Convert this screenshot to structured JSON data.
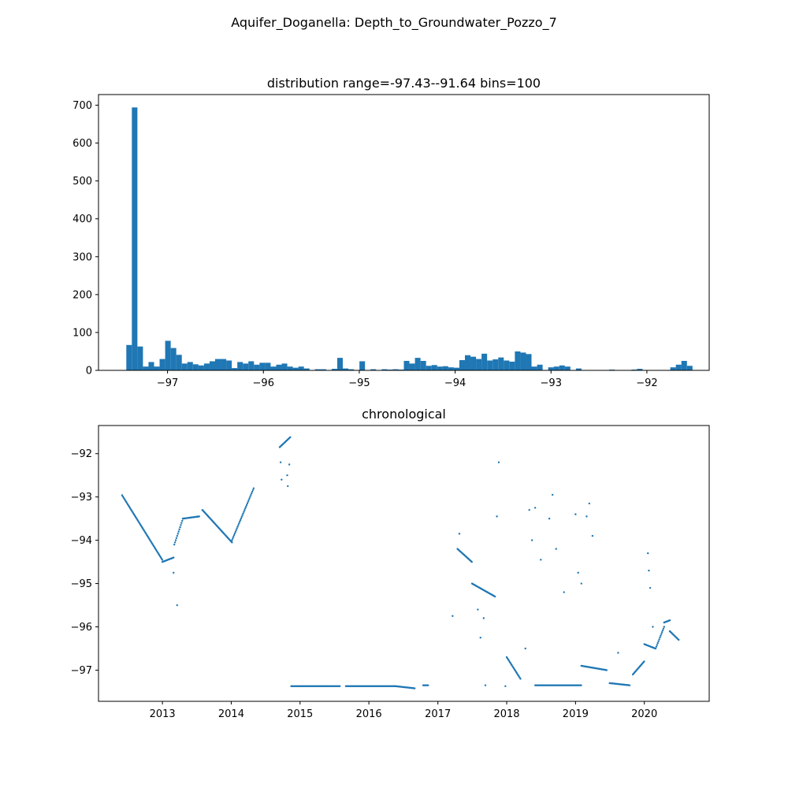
{
  "figure": {
    "title": "Aquifer_Doganella: Depth_to_Groundwater_Pozzo_7"
  },
  "colors": {
    "series": "#1f77b4",
    "axis": "#000000"
  },
  "chart_data": [
    {
      "type": "bar",
      "title": "distribution range=-97.43--91.64 bins=100",
      "xlabel": "",
      "ylabel": "",
      "bin_range": [
        -97.43,
        -91.64
      ],
      "bins": 100,
      "xlim": [
        -97.72,
        -91.35
      ],
      "ylim": [
        0,
        728
      ],
      "xticks": [
        -97,
        -96,
        -95,
        -94,
        -93,
        -92
      ],
      "yticks": [
        0,
        100,
        200,
        300,
        400,
        500,
        600,
        700
      ],
      "grid": false,
      "counts": [
        67,
        694,
        63,
        10,
        22,
        10,
        30,
        78,
        59,
        41,
        18,
        22,
        16,
        13,
        18,
        24,
        30,
        30,
        26,
        6,
        22,
        18,
        24,
        15,
        20,
        20,
        10,
        15,
        18,
        10,
        7,
        10,
        5,
        0,
        3,
        3,
        0,
        4,
        33,
        5,
        3,
        0,
        24,
        0,
        3,
        1,
        3,
        2,
        3,
        2,
        25,
        18,
        33,
        25,
        12,
        14,
        10,
        11,
        8,
        7,
        27,
        40,
        36,
        30,
        44,
        26,
        29,
        34,
        26,
        23,
        50,
        47,
        43,
        10,
        15,
        1,
        8,
        10,
        13,
        10,
        0,
        5,
        0,
        0,
        0,
        0,
        0,
        2,
        0,
        0,
        0,
        2,
        4,
        0,
        0,
        0,
        0,
        0,
        8,
        15,
        25,
        12
      ]
    },
    {
      "type": "scatter",
      "title": "chronological",
      "xlabel": "",
      "ylabel": "",
      "xlim": [
        "2012-01-28",
        "2020-12-10"
      ],
      "ylim": [
        -97.72,
        -91.35
      ],
      "xticks": [
        "2013",
        "2014",
        "2015",
        "2016",
        "2017",
        "2018",
        "2019",
        "2020"
      ],
      "yticks": [
        -92,
        -93,
        -94,
        -95,
        -96,
        -97
      ],
      "grid": false,
      "segments": [
        {
          "start": "2012-06-01",
          "end": "2012-12-31",
          "y0": -92.96,
          "y1": -94.45
        },
        {
          "start": "2013-01-01",
          "end": "2013-03-01",
          "y0": -94.5,
          "y1": -94.4
        },
        {
          "start": "2013-03-05",
          "end": "2013-04-20",
          "y0": -94.1,
          "y1": -93.5
        },
        {
          "start": "2013-04-20",
          "end": "2013-07-15",
          "y0": -93.5,
          "y1": -93.45
        },
        {
          "start": "2013-08-01",
          "end": "2014-01-05",
          "y0": -93.3,
          "y1": -94.05
        },
        {
          "start": "2014-01-05",
          "end": "2014-04-30",
          "y0": -94.0,
          "y1": -92.8
        },
        {
          "start": "2014-09-15",
          "end": "2014-11-10",
          "y0": -91.85,
          "y1": -91.62
        },
        {
          "start": "2014-11-15",
          "end": "2015-07-31",
          "y0": -97.37,
          "y1": -97.37
        },
        {
          "start": "2015-09-01",
          "end": "2016-05-20",
          "y0": -97.37,
          "y1": -97.37
        },
        {
          "start": "2016-05-20",
          "end": "2016-08-31",
          "y0": -97.37,
          "y1": -97.42
        },
        {
          "start": "2016-10-15",
          "end": "2016-11-10",
          "y0": -97.35,
          "y1": -97.35
        },
        {
          "start": "2017-04-15",
          "end": "2017-06-30",
          "y0": -94.2,
          "y1": -94.5
        },
        {
          "start": "2017-07-01",
          "end": "2017-10-31",
          "y0": -95.0,
          "y1": -95.3
        },
        {
          "start": "2018-01-01",
          "end": "2018-03-15",
          "y0": -96.7,
          "y1": -97.2
        },
        {
          "start": "2018-06-01",
          "end": "2019-01-31",
          "y0": -97.35,
          "y1": -97.35
        },
        {
          "start": "2019-02-01",
          "end": "2019-06-15",
          "y0": -96.9,
          "y1": -97.0
        },
        {
          "start": "2019-07-01",
          "end": "2019-10-15",
          "y0": -97.3,
          "y1": -97.35
        },
        {
          "start": "2019-11-01",
          "end": "2019-12-31",
          "y0": -97.1,
          "y1": -96.8
        },
        {
          "start": "2020-01-01",
          "end": "2020-02-28",
          "y0": -96.4,
          "y1": -96.5
        },
        {
          "start": "2020-03-01",
          "end": "2020-04-15",
          "y0": -96.5,
          "y1": -96.0
        },
        {
          "start": "2020-04-15",
          "end": "2020-05-15",
          "y0": -95.9,
          "y1": -95.85
        },
        {
          "start": "2020-05-15",
          "end": "2020-07-01",
          "y0": -96.1,
          "y1": -96.3
        }
      ],
      "points": [
        {
          "x": "2013-03-01",
          "y": -94.75
        },
        {
          "x": "2013-03-20",
          "y": -95.5
        },
        {
          "x": "2014-09-20",
          "y": -92.2
        },
        {
          "x": "2014-09-25",
          "y": -92.6
        },
        {
          "x": "2014-10-25",
          "y": -92.5
        },
        {
          "x": "2014-10-28",
          "y": -92.75
        },
        {
          "x": "2014-11-05",
          "y": -92.25
        },
        {
          "x": "2017-03-20",
          "y": -95.75
        },
        {
          "x": "2017-04-25",
          "y": -93.85
        },
        {
          "x": "2017-08-01",
          "y": -95.6
        },
        {
          "x": "2017-08-15",
          "y": -96.25
        },
        {
          "x": "2017-09-01",
          "y": -95.8
        },
        {
          "x": "2017-09-10",
          "y": -97.35
        },
        {
          "x": "2017-11-20",
          "y": -92.2
        },
        {
          "x": "2017-11-10",
          "y": -93.45
        },
        {
          "x": "2017-12-25",
          "y": -97.37
        },
        {
          "x": "2018-04-10",
          "y": -96.5
        },
        {
          "x": "2018-05-01",
          "y": -93.3
        },
        {
          "x": "2018-05-15",
          "y": -94.0
        },
        {
          "x": "2018-06-01",
          "y": -93.25
        },
        {
          "x": "2018-07-01",
          "y": -94.45
        },
        {
          "x": "2018-08-15",
          "y": -93.5
        },
        {
          "x": "2018-09-01",
          "y": -92.95
        },
        {
          "x": "2018-09-20",
          "y": -94.2
        },
        {
          "x": "2018-11-01",
          "y": -95.2
        },
        {
          "x": "2019-01-01",
          "y": -93.4
        },
        {
          "x": "2019-01-15",
          "y": -94.75
        },
        {
          "x": "2019-02-01",
          "y": -95.0
        },
        {
          "x": "2019-03-01",
          "y": -93.45
        },
        {
          "x": "2019-03-15",
          "y": -93.15
        },
        {
          "x": "2019-04-01",
          "y": -93.9
        },
        {
          "x": "2019-08-15",
          "y": -96.6
        },
        {
          "x": "2020-01-20",
          "y": -94.3
        },
        {
          "x": "2020-01-25",
          "y": -94.7
        },
        {
          "x": "2020-02-01",
          "y": -95.1
        },
        {
          "x": "2020-02-15",
          "y": -96.0
        }
      ]
    }
  ]
}
